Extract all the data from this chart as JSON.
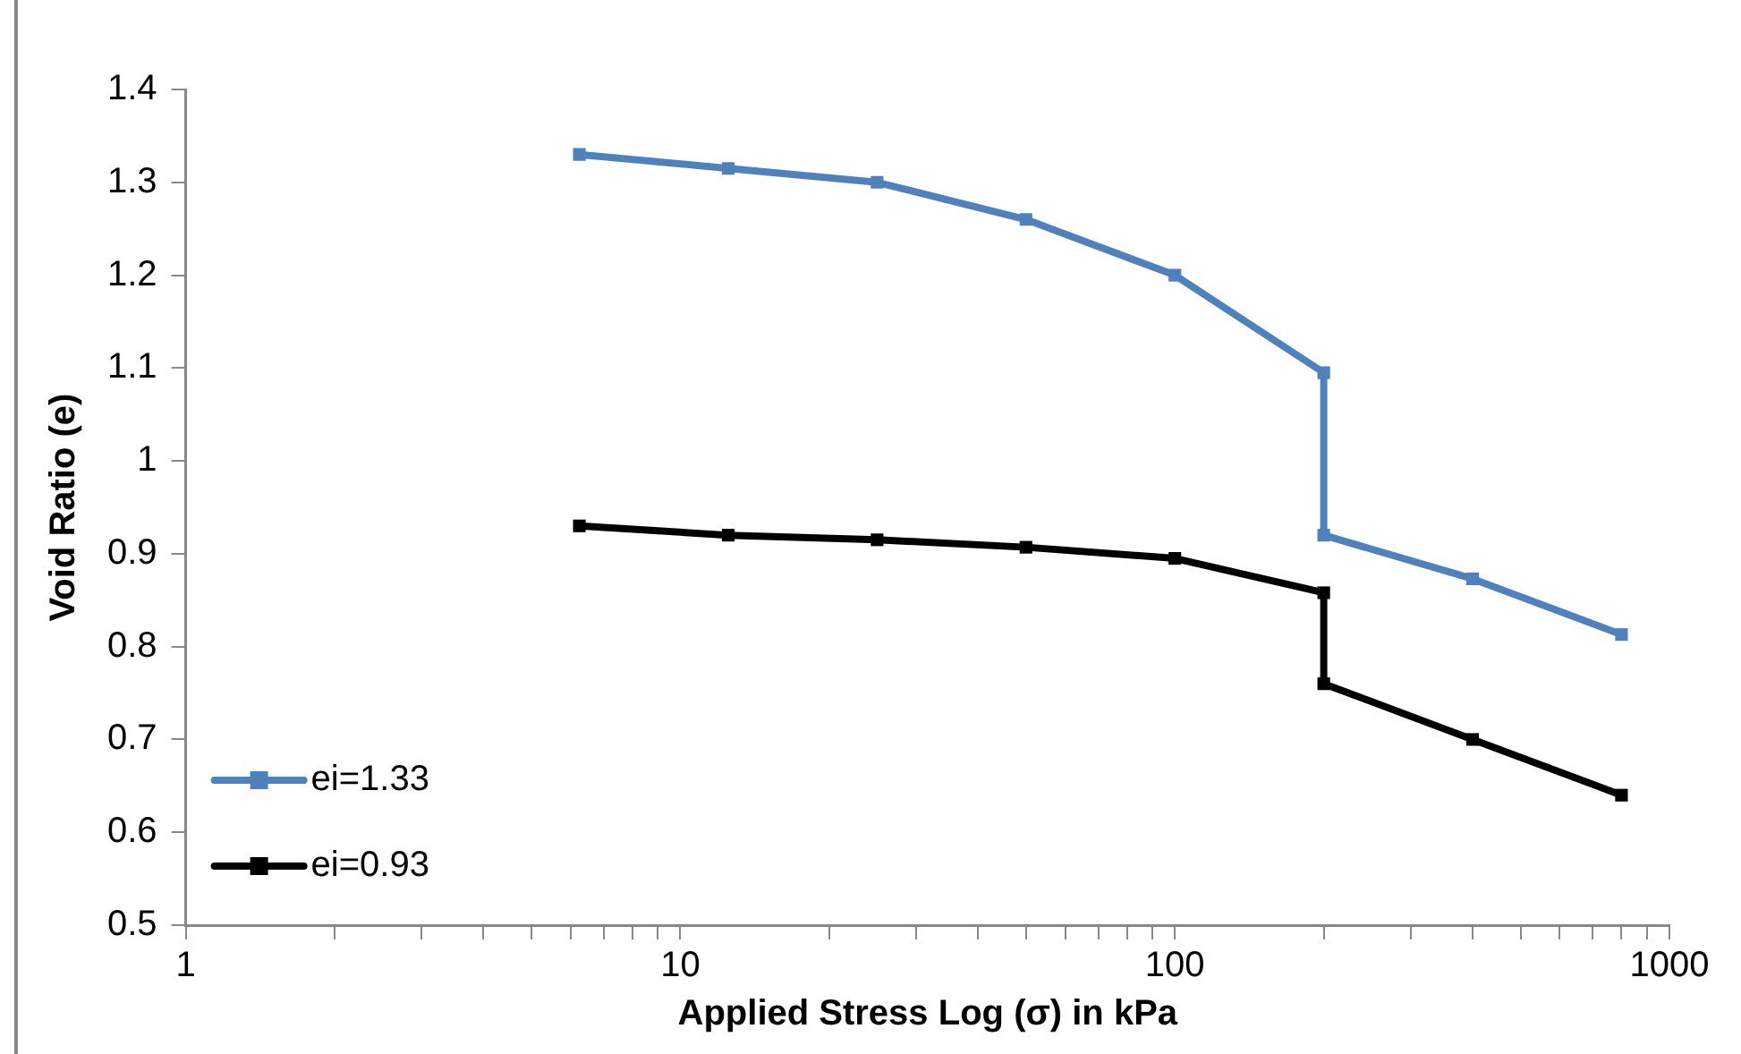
{
  "chart_data": {
    "type": "line",
    "xlabel": "Applied Stress Log (σ) in kPa",
    "ylabel": "Void Ratio (e)",
    "x": [
      6.25,
      12.5,
      25,
      50,
      100,
      200,
      200,
      400,
      800
    ],
    "series": [
      {
        "name": "ei=1.33",
        "color": "#4f81bd",
        "values": [
          1.33,
          1.315,
          1.3,
          1.26,
          1.2,
          1.095,
          0.92,
          0.873,
          0.813
        ]
      },
      {
        "name": "ei=0.93",
        "color": "#000000",
        "values": [
          0.93,
          0.92,
          0.915,
          0.907,
          0.895,
          0.858,
          0.76,
          0.7,
          0.64
        ]
      }
    ],
    "log": "x",
    "xlim": [
      1,
      1000
    ],
    "xticks": [
      1,
      {
        "value": 2,
        "label": null
      },
      {
        "value": 3,
        "label": null
      },
      {
        "value": 4,
        "label": null
      },
      {
        "value": 5,
        "label": null
      },
      {
        "value": 6,
        "label": null
      },
      {
        "value": 7,
        "label": null
      },
      {
        "value": 8,
        "label": null
      },
      {
        "value": 9,
        "label": null
      },
      10,
      {
        "value": 20,
        "label": null
      },
      {
        "value": 30,
        "label": null
      },
      {
        "value": 40,
        "label": null
      },
      {
        "value": 50,
        "label": null
      },
      {
        "value": 60,
        "label": null
      },
      {
        "value": 70,
        "label": null
      },
      {
        "value": 80,
        "label": null
      },
      {
        "value": 90,
        "label": null
      },
      100,
      {
        "value": 200,
        "label": null
      },
      {
        "value": 300,
        "label": null
      },
      {
        "value": 400,
        "label": null
      },
      {
        "value": 500,
        "label": null
      },
      {
        "value": 600,
        "label": null
      },
      {
        "value": 700,
        "label": null
      },
      {
        "value": 800,
        "label": null
      },
      {
        "value": 900,
        "label": null
      },
      1000
    ],
    "ylim": [
      0.5,
      1.4
    ],
    "yticks": [
      0.5,
      0.6,
      0.7,
      0.8,
      0.9,
      1,
      1.1,
      1.2,
      1.3,
      1.4
    ],
    "grid": false,
    "legend": "bottom left",
    "marker": "square",
    "line_style": "solid"
  }
}
